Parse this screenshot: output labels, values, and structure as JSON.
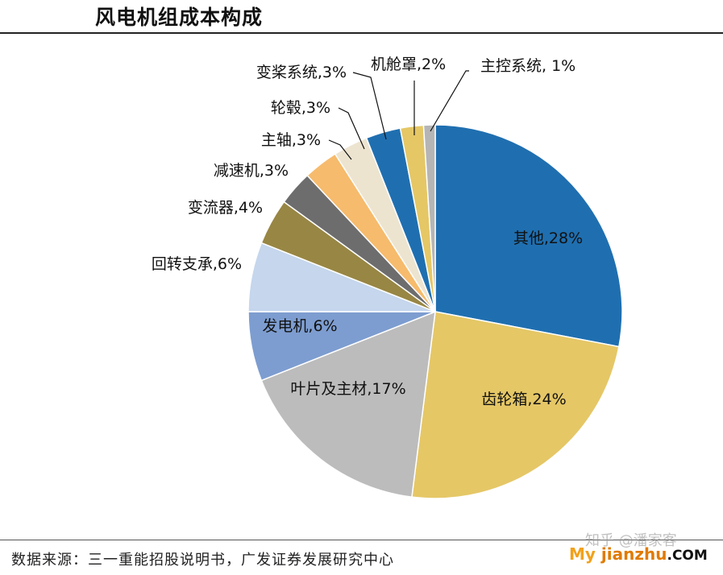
{
  "header": {
    "title": "风电机组成本构成"
  },
  "footer": {
    "source": "数据来源：三一重能招股说明书，广发证券发展研究中心"
  },
  "watermark": {
    "top": "知乎 @潘家客",
    "my": "My",
    "rest": " jianzhu",
    "com": ".COM"
  },
  "chart_data": {
    "type": "pie",
    "title": "风电机组成本构成",
    "slices": [
      {
        "label": "其他,28%",
        "name": "其他",
        "value": 28,
        "color": "#1f6fb0",
        "label_pos": "inside"
      },
      {
        "label": "齿轮箱,24%",
        "name": "齿轮箱",
        "value": 24,
        "color": "#e5c766",
        "label_pos": "inside"
      },
      {
        "label": "叶片及主材,17%",
        "name": "叶片及主材",
        "value": 17,
        "color": "#bcbcbc",
        "label_pos": "inside"
      },
      {
        "label": "发电机,6%",
        "name": "发电机",
        "value": 6,
        "color": "#7d9dd0",
        "label_pos": "inside"
      },
      {
        "label": "回转支承,6%",
        "name": "回转支承",
        "value": 6,
        "color": "#c5d6ed",
        "label_pos": "outside"
      },
      {
        "label": "变流器,4%",
        "name": "变流器",
        "value": 4,
        "color": "#988644",
        "label_pos": "outside"
      },
      {
        "label": "减速机,3%",
        "name": "减速机",
        "value": 3,
        "color": "#6d6d6d",
        "label_pos": "outside"
      },
      {
        "label": "主轴,3%",
        "name": "主轴",
        "value": 3,
        "color": "#f6bb6c",
        "label_pos": "outside"
      },
      {
        "label": "轮毂,3%",
        "name": "轮毂",
        "value": 3,
        "color": "#ede4d0",
        "label_pos": "outside"
      },
      {
        "label": "变桨系统,3%",
        "name": "变桨系统",
        "value": 3,
        "color": "#1f6fb0",
        "label_pos": "outside"
      },
      {
        "label": "机舱罩,2%",
        "name": "机舱罩",
        "value": 2,
        "color": "#e5c766",
        "label_pos": "outside"
      },
      {
        "label": "主控系统, 1%",
        "name": "主控系统",
        "value": 1,
        "color": "#b5b5b5",
        "label_pos": "outside"
      }
    ]
  }
}
